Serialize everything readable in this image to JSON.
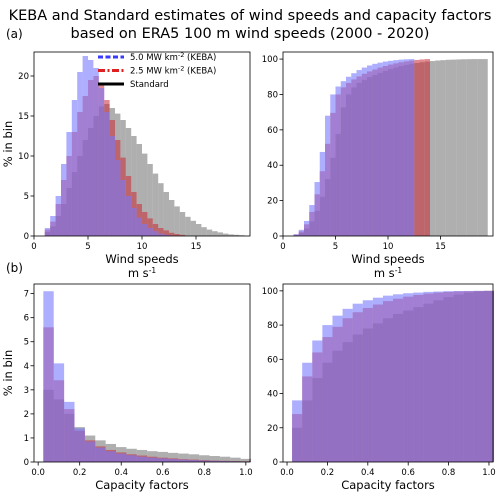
{
  "figure": {
    "title_line1": "KEBA and Standard estimates of wind speeds and capacity factors",
    "title_line2": "based on ERA5 100 m wind speeds (2000 - 2020)",
    "row_labels": [
      "(a)",
      "(b)"
    ]
  },
  "legend": [
    {
      "name": "5.0 MW km-2 (KEBA)",
      "name_main": "5.0 MW km",
      "name_sup": "-2",
      "name_tail": " (KEBA)",
      "color": "#3a3aff",
      "dash": "dashed"
    },
    {
      "name": "2.5 MW km-2 (KEBA)",
      "name_main": "2.5 MW km",
      "name_sup": "-2",
      "name_tail": " (KEBA)",
      "color": "#e02020",
      "dash": "dashdot"
    },
    {
      "name": "Standard",
      "name_main": "Standard",
      "name_sup": "",
      "name_tail": "",
      "color": "#000000",
      "dash": "solid"
    }
  ],
  "colors": {
    "keba50_fill": "rgba(120,120,255,0.6)",
    "keba25_fill": "rgba(200,40,50,0.55)",
    "standard_fill": "rgba(110,110,110,0.55)"
  },
  "chart_data": [
    {
      "id": "a_hist",
      "type": "bar",
      "xlabel": "Wind speeds",
      "xunit_main": "m s",
      "xunit_sup": "-1",
      "ylabel": "% in bin",
      "xlim": [
        0,
        20
      ],
      "ylim": [
        0,
        23
      ],
      "xticks": [
        0,
        5,
        10,
        15
      ],
      "yticks": [
        0,
        5,
        10,
        15,
        20
      ],
      "bin_width": 0.5,
      "series": [
        {
          "name": "Standard",
          "x_start": 1.0,
          "values": [
            0.5,
            1.2,
            2.5,
            4.0,
            6.0,
            8.0,
            10.0,
            12.0,
            13.5,
            15.0,
            16.2,
            16.5,
            16.0,
            15.3,
            14.5,
            13.5,
            12.5,
            11.5,
            10.3,
            9.0,
            7.8,
            6.6,
            5.5,
            4.5,
            3.7,
            3.0,
            2.4,
            1.9,
            1.5,
            1.1,
            0.8,
            0.6,
            0.45,
            0.3,
            0.2,
            0.15,
            0.1
          ]
        },
        {
          "name": "2.5 MW km-2 (KEBA)",
          "x_start": 1.0,
          "values": [
            0.8,
            1.8,
            4.0,
            7.0,
            10.0,
            13.0,
            15.5,
            17.5,
            19.5,
            20.0,
            19.0,
            17.0,
            14.5,
            12.0,
            9.8,
            7.5,
            5.5,
            4.0,
            3.0,
            2.2,
            1.5,
            1.0,
            0.7,
            0.4,
            0.25,
            0.15
          ]
        },
        {
          "name": "5.0 MW km-2 (KEBA)",
          "x_start": 1.0,
          "values": [
            1.0,
            2.5,
            5.0,
            9.0,
            13.0,
            17.0,
            20.5,
            22.5,
            22.0,
            21.0,
            18.5,
            15.5,
            12.5,
            9.5,
            7.0,
            5.0,
            3.5,
            2.3,
            1.5,
            1.0,
            0.6,
            0.3,
            0.15
          ]
        }
      ]
    },
    {
      "id": "a_cum",
      "type": "bar",
      "xlabel": "Wind speeds",
      "xunit_main": "m s",
      "xunit_sup": "-1",
      "ylabel": "",
      "xlim": [
        0,
        20
      ],
      "ylim": [
        0,
        104
      ],
      "xticks": [
        0,
        5,
        10,
        15
      ],
      "yticks": [
        0,
        20,
        40,
        60,
        80,
        100
      ],
      "bin_width": 0.5,
      "series": [
        {
          "name": "Standard",
          "x_start": 1.0,
          "values": [
            0.5,
            1.7,
            4.2,
            8.2,
            14.2,
            22.2,
            32.2,
            44.2,
            57.7,
            72.7,
            80.0,
            84.0,
            86.5,
            88.3,
            89.8,
            91.0,
            92.2,
            93.3,
            94.3,
            95.2,
            96.0,
            96.7,
            97.3,
            97.8,
            98.2,
            98.6,
            98.9,
            99.2,
            99.4,
            99.6,
            99.7,
            99.8,
            99.9,
            99.95,
            100,
            100,
            100
          ]
        },
        {
          "name": "2.5 MW km-2 (KEBA)",
          "x_start": 1.0,
          "values": [
            0.8,
            2.6,
            6.6,
            13.6,
            23.6,
            36.6,
            52.1,
            69.6,
            80.0,
            84.0,
            86.5,
            88.5,
            90.2,
            91.7,
            93.0,
            94.1,
            95.2,
            96.1,
            96.9,
            97.6,
            98.2,
            98.7,
            99.1,
            99.5,
            99.8,
            100
          ]
        },
        {
          "name": "5.0 MW km-2 (KEBA)",
          "x_start": 1.0,
          "values": [
            1.0,
            3.5,
            8.5,
            17.5,
            30.5,
            47.5,
            68.0,
            80.0,
            84.5,
            87.5,
            90.0,
            92.0,
            93.8,
            95.2,
            96.4,
            97.3,
            98.0,
            98.6,
            99.0,
            99.4,
            99.7,
            99.9,
            100
          ]
        }
      ]
    },
    {
      "id": "b_hist",
      "type": "bar",
      "xlabel": "Capacity factors",
      "ylabel": "% in bin",
      "xlim": [
        -0.02,
        1.02
      ],
      "ylim": [
        0,
        7.4
      ],
      "xticks": [
        0.0,
        0.2,
        0.4,
        0.6,
        0.8,
        1.0
      ],
      "yticks": [
        0,
        1,
        2,
        3,
        4,
        5,
        6,
        7
      ],
      "bin_width": 0.05,
      "series": [
        {
          "name": "Standard",
          "x_start": 0.025,
          "values": [
            3.0,
            2.6,
            2.0,
            1.45,
            1.1,
            0.9,
            0.75,
            0.62,
            0.55,
            0.5,
            0.45,
            0.42,
            0.38,
            0.35,
            0.32,
            0.28,
            0.25,
            0.22,
            0.18,
            0.13
          ]
        },
        {
          "name": "2.5 MW km-2 (KEBA)",
          "x_start": 0.025,
          "values": [
            5.6,
            3.4,
            2.2,
            1.3,
            0.9,
            0.65,
            0.5,
            0.4,
            0.32,
            0.27,
            0.22,
            0.18,
            0.15,
            0.12,
            0.1,
            0.08,
            0.06,
            0.05,
            0.04,
            0.03
          ]
        },
        {
          "name": "5.0 MW km-2 (KEBA)",
          "x_start": 0.025,
          "values": [
            7.1,
            4.1,
            2.5,
            1.4,
            0.85,
            0.6,
            0.45,
            0.35,
            0.28,
            0.22,
            0.18,
            0.15,
            0.12,
            0.1,
            0.08,
            0.06,
            0.05,
            0.04,
            0.03,
            0.02
          ]
        }
      ]
    },
    {
      "id": "b_cum",
      "type": "bar",
      "xlabel": "Capacity factors",
      "ylabel": "",
      "xlim": [
        -0.02,
        1.02
      ],
      "ylim": [
        0,
        104
      ],
      "xticks": [
        0.0,
        0.2,
        0.4,
        0.6,
        0.8,
        1.0
      ],
      "yticks": [
        0,
        20,
        40,
        60,
        80,
        100
      ],
      "bin_width": 0.05,
      "series": [
        {
          "name": "Standard",
          "x_start": 0.025,
          "values": [
            20,
            36,
            49,
            58,
            65,
            70,
            74.5,
            78,
            81,
            84,
            86.5,
            88.5,
            90.5,
            92.5,
            94.5,
            96.3,
            97.8,
            99,
            99.6,
            100
          ]
        },
        {
          "name": "2.5 MW km-2 (KEBA)",
          "x_start": 0.025,
          "values": [
            28,
            50,
            64,
            73,
            79,
            84,
            87.5,
            90,
            92,
            94,
            95.4,
            96.6,
            97.6,
            98.4,
            99,
            99.4,
            99.7,
            99.85,
            99.95,
            100
          ]
        },
        {
          "name": "5.0 MW km-2 (KEBA)",
          "x_start": 0.025,
          "values": [
            36,
            58,
            71,
            80,
            85.5,
            89.5,
            92.5,
            94.5,
            96,
            97.2,
            98,
            98.6,
            99,
            99.4,
            99.6,
            99.8,
            99.9,
            99.95,
            100,
            100
          ]
        }
      ]
    }
  ]
}
